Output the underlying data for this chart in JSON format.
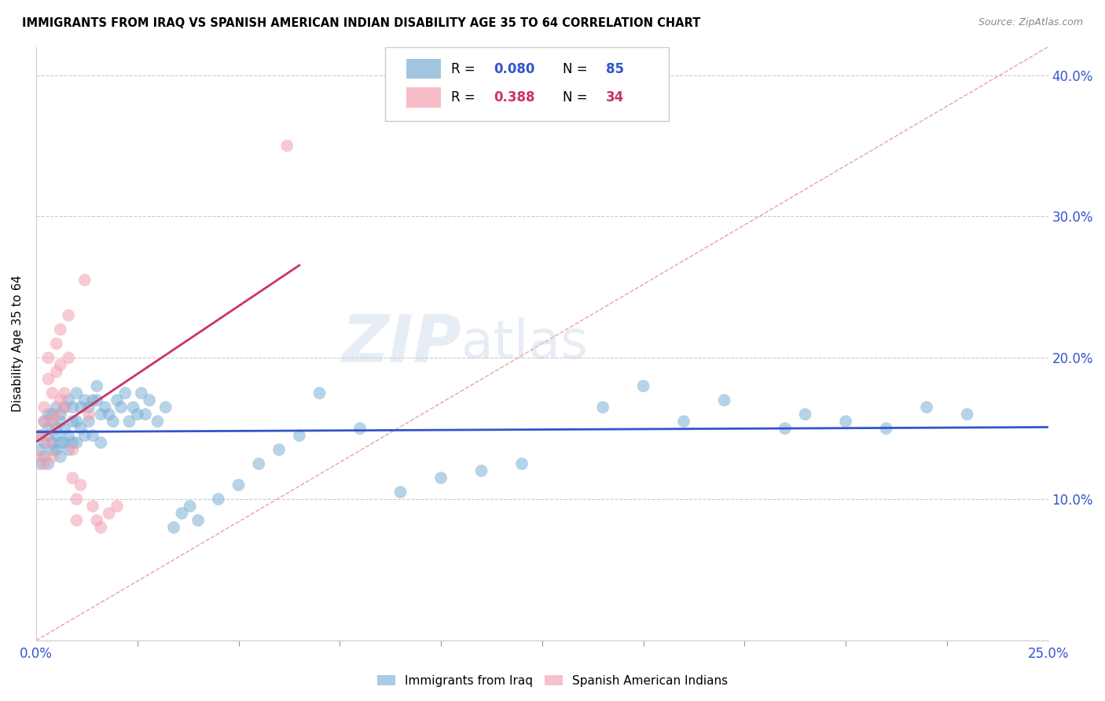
{
  "title": "IMMIGRANTS FROM IRAQ VS SPANISH AMERICAN INDIAN DISABILITY AGE 35 TO 64 CORRELATION CHART",
  "source": "Source: ZipAtlas.com",
  "ylabel": "Disability Age 35 to 64",
  "x_min": 0.0,
  "x_max": 0.25,
  "y_min": 0.0,
  "y_max": 0.42,
  "blue_color": "#7bafd4",
  "pink_color": "#f4a0b0",
  "blue_line_color": "#3355cc",
  "pink_line_color": "#cc3366",
  "blue_R": "0.080",
  "blue_N": "85",
  "pink_R": "0.388",
  "pink_N": "34",
  "text_blue": "#3355cc",
  "text_pink": "#cc3366",
  "grid_color": "#cccccc",
  "watermark_color": "#b8cce4",
  "blue_points_x": [
    0.001,
    0.001,
    0.001,
    0.002,
    0.002,
    0.002,
    0.003,
    0.003,
    0.003,
    0.003,
    0.004,
    0.004,
    0.004,
    0.004,
    0.005,
    0.005,
    0.005,
    0.005,
    0.006,
    0.006,
    0.006,
    0.006,
    0.007,
    0.007,
    0.007,
    0.008,
    0.008,
    0.008,
    0.009,
    0.009,
    0.009,
    0.01,
    0.01,
    0.01,
    0.011,
    0.011,
    0.012,
    0.012,
    0.013,
    0.013,
    0.014,
    0.014,
    0.015,
    0.015,
    0.016,
    0.016,
    0.017,
    0.018,
    0.019,
    0.02,
    0.021,
    0.022,
    0.023,
    0.024,
    0.025,
    0.026,
    0.027,
    0.028,
    0.03,
    0.032,
    0.034,
    0.036,
    0.038,
    0.04,
    0.045,
    0.05,
    0.055,
    0.06,
    0.065,
    0.07,
    0.08,
    0.09,
    0.1,
    0.11,
    0.12,
    0.14,
    0.15,
    0.16,
    0.17,
    0.185,
    0.19,
    0.2,
    0.21,
    0.22,
    0.23
  ],
  "blue_points_y": [
    0.135,
    0.145,
    0.125,
    0.155,
    0.13,
    0.14,
    0.16,
    0.145,
    0.125,
    0.15,
    0.155,
    0.135,
    0.16,
    0.14,
    0.15,
    0.135,
    0.165,
    0.145,
    0.155,
    0.14,
    0.16,
    0.13,
    0.165,
    0.15,
    0.14,
    0.17,
    0.145,
    0.135,
    0.155,
    0.14,
    0.165,
    0.155,
    0.175,
    0.14,
    0.165,
    0.15,
    0.17,
    0.145,
    0.165,
    0.155,
    0.17,
    0.145,
    0.17,
    0.18,
    0.16,
    0.14,
    0.165,
    0.16,
    0.155,
    0.17,
    0.165,
    0.175,
    0.155,
    0.165,
    0.16,
    0.175,
    0.16,
    0.17,
    0.155,
    0.165,
    0.08,
    0.09,
    0.095,
    0.085,
    0.1,
    0.11,
    0.125,
    0.135,
    0.145,
    0.175,
    0.15,
    0.105,
    0.115,
    0.12,
    0.125,
    0.165,
    0.18,
    0.155,
    0.17,
    0.15,
    0.16,
    0.155,
    0.15,
    0.165,
    0.16
  ],
  "pink_points_x": [
    0.001,
    0.001,
    0.002,
    0.002,
    0.002,
    0.003,
    0.003,
    0.003,
    0.004,
    0.004,
    0.004,
    0.005,
    0.005,
    0.005,
    0.006,
    0.006,
    0.006,
    0.007,
    0.007,
    0.008,
    0.008,
    0.009,
    0.009,
    0.01,
    0.01,
    0.011,
    0.012,
    0.013,
    0.014,
    0.015,
    0.016,
    0.018,
    0.02,
    0.062
  ],
  "pink_points_y": [
    0.13,
    0.145,
    0.165,
    0.125,
    0.155,
    0.2,
    0.185,
    0.14,
    0.175,
    0.155,
    0.13,
    0.21,
    0.19,
    0.16,
    0.22,
    0.195,
    0.17,
    0.175,
    0.165,
    0.23,
    0.2,
    0.135,
    0.115,
    0.1,
    0.085,
    0.11,
    0.255,
    0.16,
    0.095,
    0.085,
    0.08,
    0.09,
    0.095,
    0.35
  ]
}
